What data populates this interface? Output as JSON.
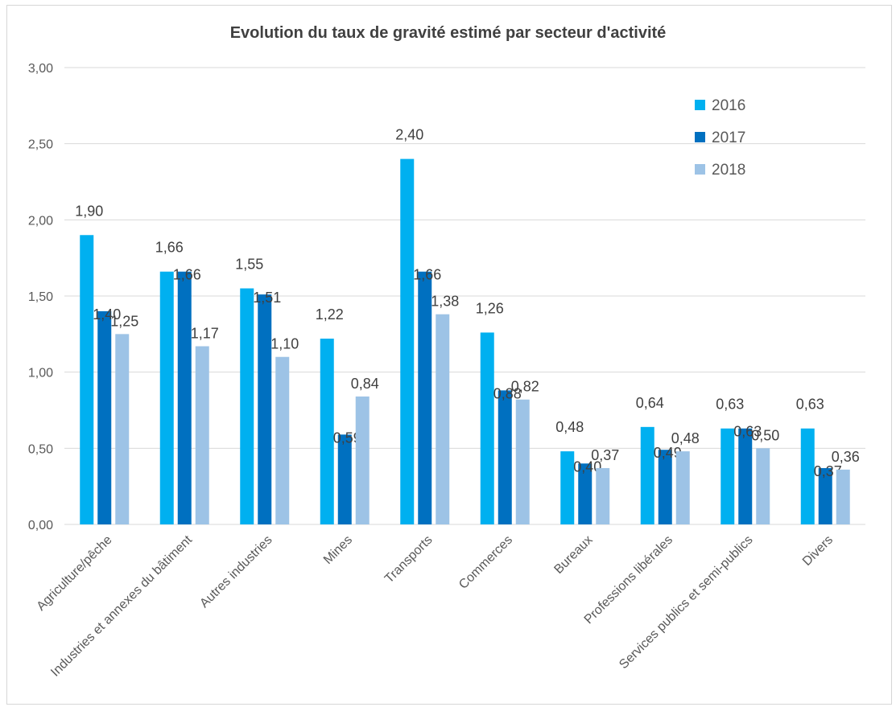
{
  "colors": {
    "s2016": "#00b0f0",
    "s2017": "#0070c0",
    "s2018": "#9dc3e6",
    "grid": "#d9d9d9"
  },
  "chart_data": {
    "type": "bar",
    "title": "Evolution du taux de gravité estimé par secteur d'activité",
    "categories": [
      "Agriculture/pêche",
      "Industries et annexes du bâtiment",
      "Autres industries",
      "Mines",
      "Transports",
      "Commerces",
      "Bureaux",
      "Professions libérales",
      "Services publics et semi-publics",
      "Divers"
    ],
    "series": [
      {
        "name": "2016",
        "values": [
          1.9,
          1.66,
          1.55,
          1.22,
          2.4,
          1.26,
          0.48,
          0.64,
          0.63,
          0.63
        ],
        "labels": [
          "1,90",
          "1,66",
          "1,55",
          "1,22",
          "2,40",
          "1,26",
          "0,48",
          "0,64",
          "0,63",
          "0,63"
        ]
      },
      {
        "name": "2017",
        "values": [
          1.4,
          1.66,
          1.51,
          0.59,
          1.66,
          0.88,
          0.4,
          0.49,
          0.63,
          0.37
        ],
        "labels": [
          "1,40",
          "1,66",
          "1,51",
          "0,59",
          "1,66",
          "0,88",
          "0,40",
          "0,49",
          "0,63",
          "0,37"
        ]
      },
      {
        "name": "2018",
        "values": [
          1.25,
          1.17,
          1.1,
          0.84,
          1.38,
          0.82,
          0.37,
          0.48,
          0.5,
          0.36
        ],
        "labels": [
          "1,25",
          "1,17",
          "1,10",
          "0,84",
          "1,38",
          "0,82",
          "0,37",
          "0,48",
          "0,50",
          "0,36"
        ]
      }
    ],
    "ylim": [
      0,
      3
    ],
    "yticks": [
      "0,00",
      "0,50",
      "1,00",
      "1,50",
      "2,00",
      "2,50",
      "3,00"
    ],
    "ytick_values": [
      0,
      0.5,
      1,
      1.5,
      2,
      2.5,
      3
    ],
    "grid": true,
    "legend": "top-right"
  }
}
